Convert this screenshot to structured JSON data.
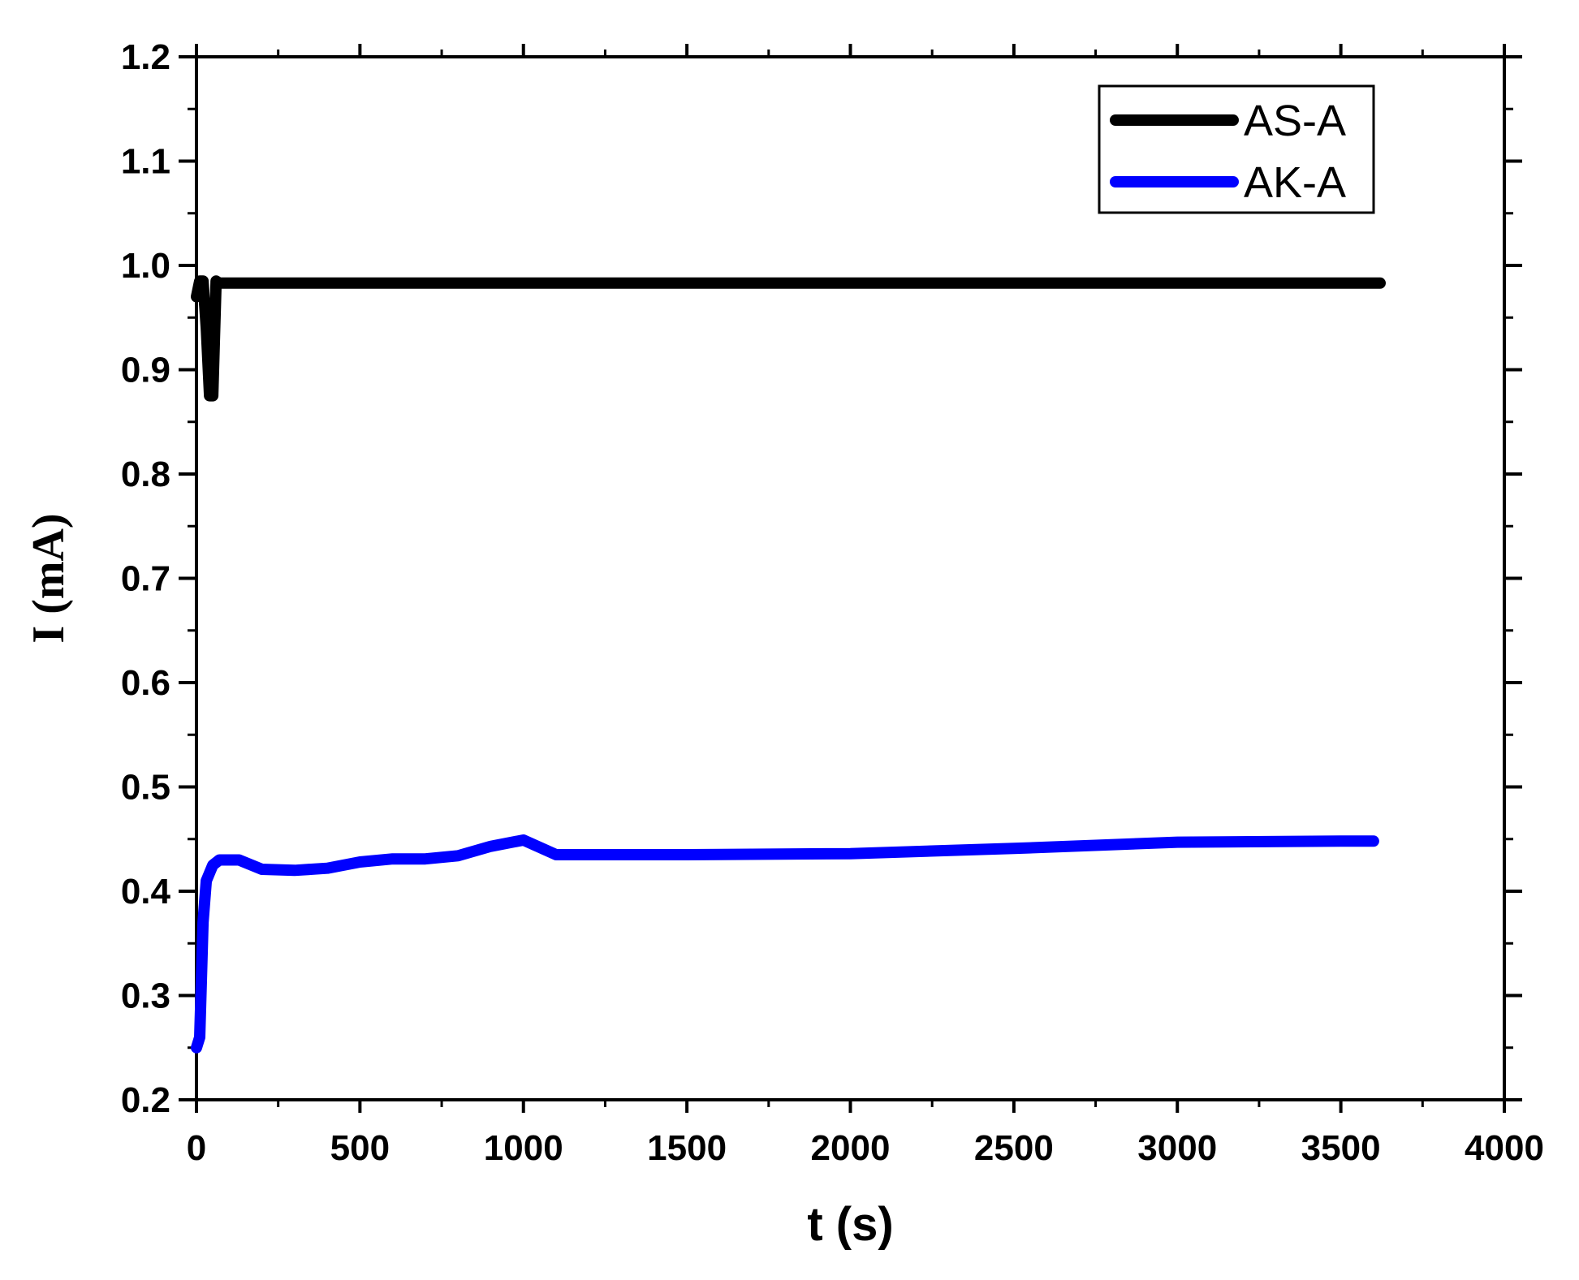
{
  "chart_data": {
    "type": "line",
    "title": "",
    "xlabel": "t (s)",
    "ylabel": "I (mA)",
    "xlim": [
      0,
      4000
    ],
    "ylim": [
      0.2,
      1.2
    ],
    "x_ticks": [
      0,
      500,
      1000,
      1500,
      2000,
      2500,
      3000,
      3500,
      4000
    ],
    "x_tick_labels": [
      "0",
      "500",
      "1000",
      "1500",
      "2000",
      "2500",
      "3000",
      "3500",
      "4000"
    ],
    "y_ticks": [
      0.2,
      0.3,
      0.4,
      0.5,
      0.6,
      0.7,
      0.8,
      0.9,
      1.0,
      1.1,
      1.2
    ],
    "y_tick_labels": [
      "0.2",
      "0.3",
      "0.4",
      "0.5",
      "0.6",
      "0.7",
      "0.8",
      "0.9",
      "1.0",
      "1.1",
      "1.2"
    ],
    "grid": false,
    "legend_position": "top-right",
    "series": [
      {
        "name": "AS-A",
        "color": "#000000",
        "x": [
          0,
          10,
          20,
          30,
          40,
          50,
          60,
          70,
          100,
          500,
          1000,
          1500,
          2000,
          2500,
          3000,
          3500,
          3620
        ],
        "y": [
          0.97,
          0.985,
          0.985,
          0.94,
          0.875,
          0.875,
          0.985,
          0.983,
          0.983,
          0.983,
          0.983,
          0.983,
          0.983,
          0.983,
          0.983,
          0.983,
          0.983
        ]
      },
      {
        "name": "AK-A",
        "color": "#0000ff",
        "x": [
          0,
          10,
          20,
          30,
          50,
          70,
          100,
          130,
          200,
          300,
          400,
          500,
          600,
          700,
          800,
          900,
          1000,
          1100,
          1500,
          2000,
          2500,
          3000,
          3500,
          3600
        ],
        "y": [
          0.25,
          0.26,
          0.37,
          0.41,
          0.425,
          0.43,
          0.43,
          0.43,
          0.421,
          0.42,
          0.422,
          0.428,
          0.431,
          0.431,
          0.434,
          0.443,
          0.449,
          0.435,
          0.435,
          0.436,
          0.441,
          0.447,
          0.448,
          0.448
        ]
      }
    ]
  }
}
